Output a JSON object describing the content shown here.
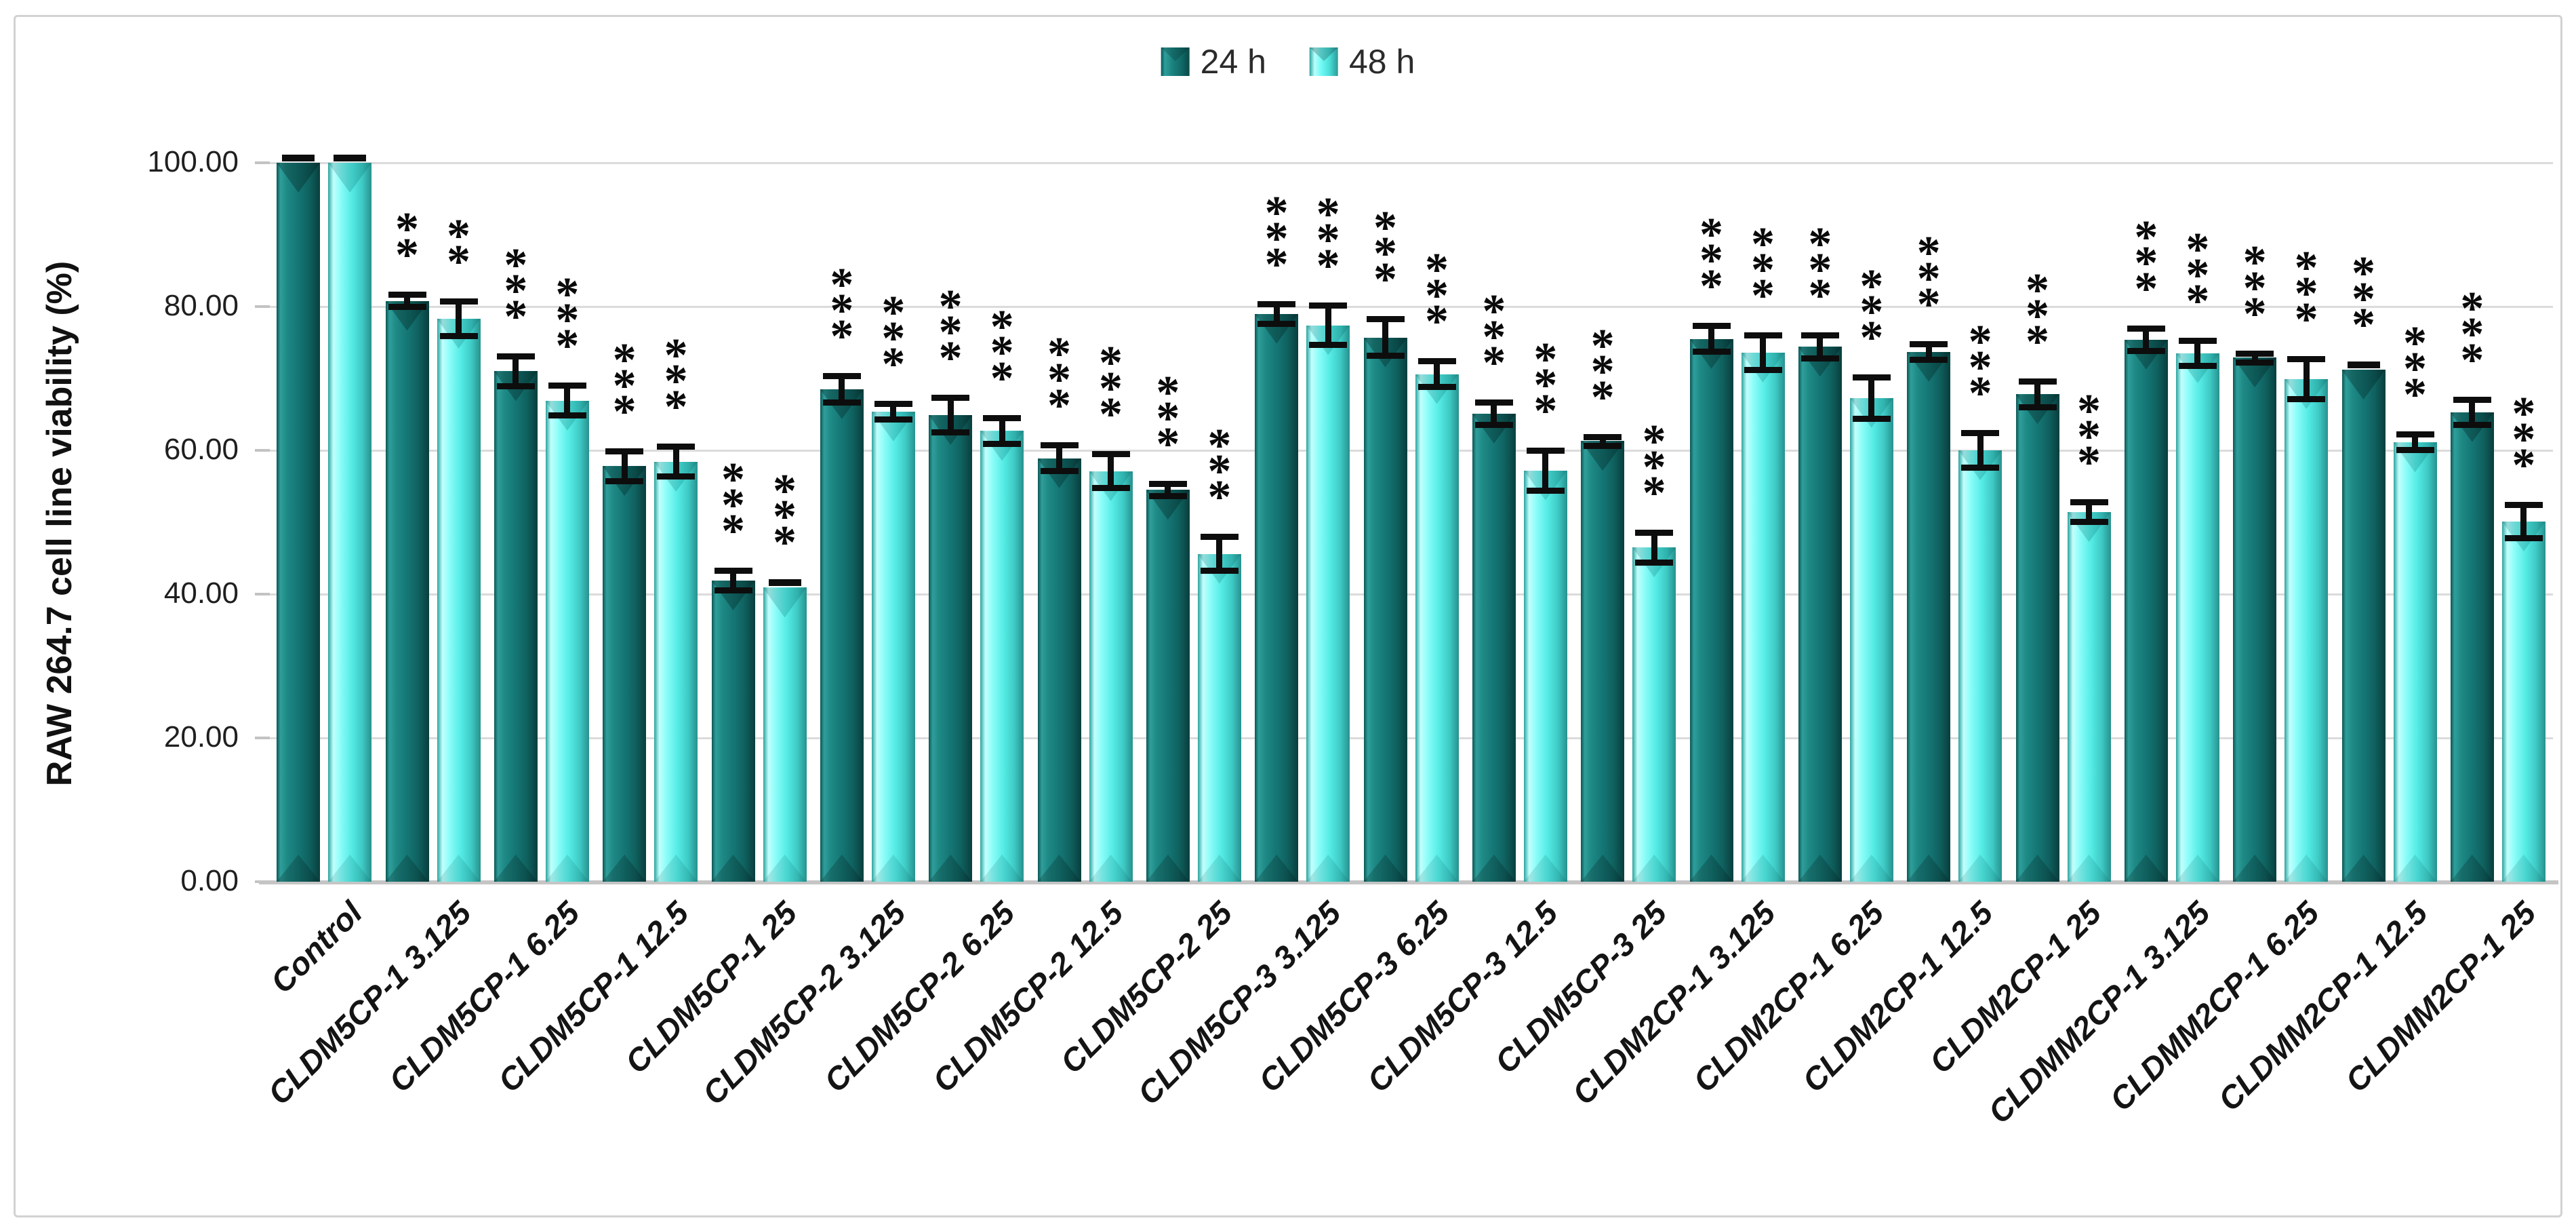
{
  "chart_data": {
    "type": "bar",
    "title": "",
    "ylabel": "RAW 264.7 cell line viability (%)",
    "xlabel": "",
    "ylim": [
      0,
      100
    ],
    "ytick_values": [
      0,
      20,
      40,
      60,
      80,
      100
    ],
    "ytick_labels": [
      "0.00",
      "20.00",
      "40.00",
      "60.00",
      "80.00",
      "100.00"
    ],
    "grid": true,
    "legend_position": "top-center",
    "bar_style": "3d-bevel",
    "error_bars": true,
    "significance_note": "asterisks above bars denote significance vs control",
    "categories": [
      "Control",
      "CLDM5CP-1 3.125",
      "CLDM5CP-1 6.25",
      "CLDM5CP-1 12.5",
      "CLDM5CP-1 25",
      "CLDM5CP-2 3.125",
      "CLDM5CP-2 6.25",
      "CLDM5CP-2 12.5",
      "CLDM5CP-2 25",
      "CLDM5CP-3 3.125",
      "CLDM5CP-3 6.25",
      "CLDM5CP-3 12.5",
      "CLDM5CP-3 25",
      "CLDM2CP-1 3.125",
      "CLDM2CP-1 6.25",
      "CLDM2CP-1 12.5",
      "CLDM2CP-1 25",
      "CLDMM2CP-1 3.125",
      "CLDMM2CP-1 6.25",
      "CLDMM2CP-1 12.5",
      "CLDMM2CP-1 25"
    ],
    "series": [
      {
        "name": "24 h",
        "color": "#147573",
        "values": [
          100.0,
          80.8,
          71.0,
          57.8,
          41.9,
          68.5,
          64.9,
          58.9,
          54.5,
          79.0,
          75.7,
          65.1,
          61.3,
          75.5,
          74.4,
          73.7,
          67.8,
          75.4,
          72.9,
          71.2,
          65.3
        ],
        "errors": [
          0.4,
          1.3,
          2.5,
          2.5,
          1.8,
          2.3,
          2.8,
          2.2,
          1.3,
          1.8,
          3.0,
          2.0,
          1.0,
          2.2,
          2.0,
          1.5,
          2.2,
          2.0,
          1.0,
          0.6,
          2.2
        ],
        "significance": [
          "",
          "**",
          "***",
          "***",
          "***",
          "***",
          "***",
          "***",
          "***",
          "***",
          "***",
          "***",
          "***",
          "***",
          "***",
          "***",
          "***",
          "***",
          "***",
          "***",
          "***"
        ]
      },
      {
        "name": "48 h",
        "color": "#55ece6",
        "values": [
          100.0,
          78.3,
          66.9,
          58.4,
          40.9,
          65.4,
          62.7,
          57.1,
          45.6,
          77.4,
          70.6,
          57.2,
          46.5,
          73.6,
          67.3,
          60.0,
          51.4,
          73.5,
          69.9,
          61.1,
          50.1
        ],
        "errors": [
          0.4,
          2.8,
          2.5,
          2.5,
          0.4,
          1.5,
          2.2,
          2.8,
          2.8,
          3.2,
          2.2,
          3.2,
          2.5,
          2.8,
          3.3,
          2.8,
          1.8,
          2.2,
          3.2,
          1.5,
          2.7
        ],
        "significance": [
          "",
          "**",
          "***",
          "***",
          "***",
          "***",
          "***",
          "***",
          "***",
          "***",
          "***",
          "***",
          "***",
          "***",
          "***",
          "***",
          "***",
          "***",
          "***",
          "***",
          "***"
        ]
      }
    ]
  }
}
